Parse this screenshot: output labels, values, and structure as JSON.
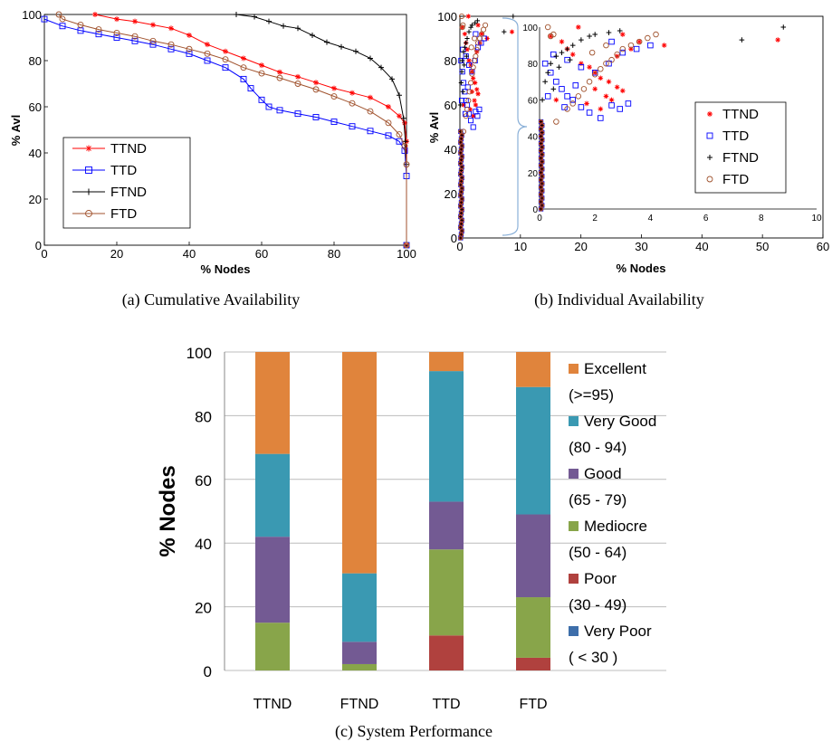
{
  "figure": {
    "captions": [
      "(a) Cumulative Availability",
      "(b) Individual Availability",
      "(c) System Performance"
    ]
  },
  "colors": {
    "TTND": "#ff0000",
    "TTD": "#0000ff",
    "FTND": "#000000",
    "FTD": "#a0522d",
    "Excellent": "#e0843c",
    "Very Good": "#3a99b2",
    "Good": "#735a93",
    "Mediocre": "#88a54a",
    "Poor": "#b0413e",
    "Very Poor": "#3d6eaa"
  },
  "chart_data": [
    {
      "type": "line",
      "xlabel": "% Nodes",
      "ylabel": "% Avl",
      "xlim": [
        0,
        100
      ],
      "ylim": [
        0,
        100
      ],
      "xticks": [
        "0",
        "20",
        "40",
        "60",
        "80",
        "100"
      ],
      "yticks": [
        "0",
        "20",
        "40",
        "60",
        "80",
        "100"
      ],
      "legend_position": "lower-left",
      "series": [
        {
          "name": "TTND",
          "marker": "star",
          "points": [
            [
              14,
              100
            ],
            [
              20,
              98
            ],
            [
              25,
              97
            ],
            [
              30,
              95.5
            ],
            [
              35,
              94
            ],
            [
              40,
              91
            ],
            [
              45,
              87
            ],
            [
              50,
              84
            ],
            [
              55,
              81
            ],
            [
              60,
              78
            ],
            [
              65,
              75
            ],
            [
              70,
              73
            ],
            [
              75,
              70.5
            ],
            [
              80,
              68
            ],
            [
              85,
              66
            ],
            [
              90,
              64
            ],
            [
              95,
              60
            ],
            [
              98,
              56
            ],
            [
              99.5,
              53
            ],
            [
              100,
              45
            ],
            [
              100,
              0
            ]
          ]
        },
        {
          "name": "TTD",
          "marker": "square",
          "points": [
            [
              0,
              98
            ],
            [
              5,
              95
            ],
            [
              10,
              93
            ],
            [
              15,
              91.5
            ],
            [
              20,
              90
            ],
            [
              25,
              88.5
            ],
            [
              30,
              87
            ],
            [
              35,
              85
            ],
            [
              40,
              83
            ],
            [
              45,
              80
            ],
            [
              50,
              77
            ],
            [
              55,
              72
            ],
            [
              57,
              68
            ],
            [
              60,
              63
            ],
            [
              62,
              60
            ],
            [
              65,
              58.5
            ],
            [
              70,
              57
            ],
            [
              75,
              55.5
            ],
            [
              80,
              53.5
            ],
            [
              85,
              51.5
            ],
            [
              90,
              49.5
            ],
            [
              95,
              47.5
            ],
            [
              98,
              45
            ],
            [
              99.5,
              41
            ],
            [
              100,
              30
            ],
            [
              100,
              0
            ]
          ]
        },
        {
          "name": "FTND",
          "marker": "plus",
          "points": [
            [
              53,
              100
            ],
            [
              58,
              99
            ],
            [
              62,
              97
            ],
            [
              66,
              95
            ],
            [
              70,
              94
            ],
            [
              74,
              91
            ],
            [
              78,
              88
            ],
            [
              82,
              86
            ],
            [
              86,
              84
            ],
            [
              90,
              81
            ],
            [
              93,
              77
            ],
            [
              96,
              72
            ],
            [
              98,
              65
            ],
            [
              99.2,
              55
            ],
            [
              99.7,
              45
            ],
            [
              100,
              35
            ],
            [
              100,
              0
            ]
          ]
        },
        {
          "name": "FTD",
          "marker": "circle",
          "points": [
            [
              4,
              100
            ],
            [
              5,
              98
            ],
            [
              10,
              95.5
            ],
            [
              15,
              93.5
            ],
            [
              20,
              92
            ],
            [
              25,
              90.5
            ],
            [
              30,
              88.5
            ],
            [
              35,
              87
            ],
            [
              40,
              85
            ],
            [
              45,
              83
            ],
            [
              50,
              80.5
            ],
            [
              55,
              77
            ],
            [
              60,
              74.5
            ],
            [
              65,
              72.5
            ],
            [
              70,
              70
            ],
            [
              75,
              67.5
            ],
            [
              80,
              64.5
            ],
            [
              85,
              61.5
            ],
            [
              90,
              58
            ],
            [
              95,
              53
            ],
            [
              98,
              48
            ],
            [
              99.5,
              43
            ],
            [
              100,
              35
            ],
            [
              100,
              0
            ]
          ]
        }
      ]
    },
    {
      "type": "scatter",
      "xlabel": "% Nodes",
      "ylabel": "% Avl",
      "xlim": [
        0,
        60
      ],
      "ylim": [
        0,
        100
      ],
      "xticks": [
        "0",
        "10",
        "20",
        "30",
        "40",
        "50",
        "60"
      ],
      "yticks": [
        "0",
        "20",
        "40",
        "60",
        "80",
        "100"
      ],
      "inset": {
        "xlim": [
          0,
          10
        ],
        "ylim": [
          0,
          100
        ],
        "xticks": [
          "0",
          "2",
          "4",
          "6",
          "8",
          "10"
        ],
        "yticks": [
          "0",
          "20",
          "40",
          "60",
          "80",
          "100"
        ],
        "legend_position": "right"
      },
      "series": [
        {
          "name": "TTND",
          "marker": "star",
          "points": [
            [
              0.4,
              95
            ],
            [
              0.8,
              92
            ],
            [
              1.0,
              88
            ],
            [
              1.2,
              85
            ],
            [
              1.5,
              80
            ],
            [
              1.8,
              78
            ],
            [
              2.0,
              75
            ],
            [
              2.2,
              72
            ],
            [
              2.5,
              70
            ],
            [
              2.8,
              67
            ],
            [
              3.0,
              65
            ],
            [
              2.4,
              62
            ],
            [
              2.6,
              60
            ],
            [
              2.2,
              55
            ],
            [
              3.3,
              88
            ],
            [
              3.6,
              92
            ],
            [
              4.5,
              90
            ],
            [
              8.6,
              93
            ],
            [
              3.0,
              96
            ],
            [
              1.4,
              100
            ],
            [
              2.8,
              84
            ],
            [
              2.0,
              66
            ],
            [
              0.6,
              60
            ],
            [
              1.7,
              58
            ]
          ]
        },
        {
          "name": "TTD",
          "marker": "square",
          "points": [
            [
              0.2,
              80
            ],
            [
              0.4,
              75
            ],
            [
              0.6,
              70
            ],
            [
              0.8,
              66
            ],
            [
              1.0,
              62
            ],
            [
              1.2,
              60
            ],
            [
              1.5,
              56
            ],
            [
              1.8,
              53
            ],
            [
              2.2,
              50
            ],
            [
              2.6,
              57
            ],
            [
              2.9,
              55
            ],
            [
              3.2,
              58
            ],
            [
              0.5,
              85
            ],
            [
              1.0,
              82
            ],
            [
              1.5,
              78
            ],
            [
              2.0,
              75
            ],
            [
              2.5,
              80
            ],
            [
              3.0,
              86
            ],
            [
              3.5,
              88
            ],
            [
              4.0,
              90
            ],
            [
              2.6,
              92
            ],
            [
              1.3,
              68
            ],
            [
              0.9,
              56
            ],
            [
              0.3,
              62
            ]
          ]
        },
        {
          "name": "FTND",
          "marker": "plus",
          "points": [
            [
              0.1,
              60
            ],
            [
              0.2,
              70
            ],
            [
              0.3,
              75
            ],
            [
              0.4,
              80
            ],
            [
              0.6,
              84
            ],
            [
              0.8,
              86
            ],
            [
              1.0,
              88
            ],
            [
              1.2,
              90
            ],
            [
              1.5,
              93
            ],
            [
              1.8,
              95
            ],
            [
              2.0,
              96
            ],
            [
              2.5,
              97
            ],
            [
              2.9,
              98
            ],
            [
              8.8,
              100
            ],
            [
              7.3,
              93
            ],
            [
              0.5,
              66
            ],
            [
              0.7,
              78
            ],
            [
              1.1,
              82
            ]
          ]
        },
        {
          "name": "FTD",
          "marker": "circle",
          "points": [
            [
              0.6,
              48
            ],
            [
              1.0,
              55
            ],
            [
              1.2,
              58
            ],
            [
              1.4,
              62
            ],
            [
              1.6,
              66
            ],
            [
              1.8,
              70
            ],
            [
              2.0,
              74
            ],
            [
              2.2,
              77
            ],
            [
              2.4,
              80
            ],
            [
              2.6,
              82
            ],
            [
              2.8,
              85
            ],
            [
              3.0,
              88
            ],
            [
              3.3,
              90
            ],
            [
              3.6,
              92
            ],
            [
              3.9,
              94
            ],
            [
              4.2,
              96
            ],
            [
              1.9,
              86
            ],
            [
              2.4,
              90
            ],
            [
              0.5,
              96
            ],
            [
              0.4,
              95
            ],
            [
              0.3,
              100
            ]
          ]
        }
      ]
    },
    {
      "type": "bar",
      "stacked": true,
      "ylabel": "% Nodes",
      "ylim": [
        0,
        100
      ],
      "yticks": [
        "0",
        "20",
        "40",
        "60",
        "80",
        "100"
      ],
      "categories": [
        "TTND",
        "FTND",
        "TTD",
        "FTD"
      ],
      "legend_position": "right",
      "legend": [
        {
          "name": "Excellent",
          "range": "(>=95)"
        },
        {
          "name": "Very Good",
          "range": "(80 - 94)"
        },
        {
          "name": "Good",
          "range": "(65 - 79)"
        },
        {
          "name": "Mediocre",
          "range": "(50 - 64)"
        },
        {
          "name": "Poor",
          "range": "(30 - 49)"
        },
        {
          "name": "Very Poor",
          "range": "( < 30 )"
        }
      ],
      "series": [
        {
          "name": "Very Poor",
          "values": [
            0,
            0,
            0,
            0
          ]
        },
        {
          "name": "Poor",
          "values": [
            0,
            0,
            11,
            4
          ]
        },
        {
          "name": "Mediocre",
          "values": [
            15,
            2,
            27,
            19
          ]
        },
        {
          "name": "Good",
          "values": [
            27,
            7,
            15,
            26
          ]
        },
        {
          "name": "Very Good",
          "values": [
            26,
            21.5,
            41,
            40
          ]
        },
        {
          "name": "Excellent",
          "values": [
            32,
            69.5,
            6,
            11
          ]
        }
      ]
    }
  ]
}
